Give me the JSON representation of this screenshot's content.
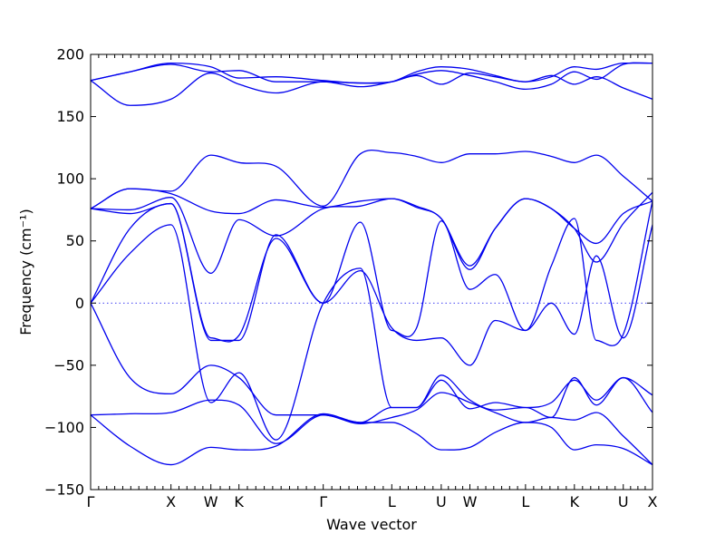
{
  "chart_data": {
    "type": "line",
    "title": "",
    "xlabel": "Wave vector",
    "ylabel": "Frequency (cm⁻¹)",
    "ylim": [
      -150,
      200
    ],
    "yticks": [
      -150,
      -100,
      -50,
      0,
      50,
      100,
      150,
      200
    ],
    "xlim": [
      0,
      1
    ],
    "xticks": [
      {
        "pos": 0.0,
        "label": "Γ"
      },
      {
        "pos": 0.143,
        "label": "X"
      },
      {
        "pos": 0.214,
        "label": "W"
      },
      {
        "pos": 0.264,
        "label": "K"
      },
      {
        "pos": 0.414,
        "label": "Γ"
      },
      {
        "pos": 0.536,
        "label": "L"
      },
      {
        "pos": 0.624,
        "label": "U"
      },
      {
        "pos": 0.675,
        "label": "W"
      },
      {
        "pos": 0.774,
        "label": "L"
      },
      {
        "pos": 0.861,
        "label": "K"
      },
      {
        "pos": 0.948,
        "label": "U"
      },
      {
        "pos": 1.0,
        "label": "X"
      }
    ],
    "zero_line": true,
    "grid": false,
    "legend": "none",
    "colors": {
      "bands": "#0000ee",
      "zero_line": "#0000ee",
      "axes": "#000000"
    },
    "series": [
      {
        "x": [
          0,
          0.07,
          0.143,
          0.214,
          0.264,
          0.33,
          0.414,
          0.48,
          0.536,
          0.58,
          0.624,
          0.675,
          0.72,
          0.774,
          0.82,
          0.861,
          0.9,
          0.948,
          1.0
        ],
        "values": [
          -90,
          -115,
          -130,
          -116,
          -118,
          -115,
          -89,
          -96,
          -96,
          -105,
          -118,
          -116,
          -104,
          -96,
          -100,
          -118,
          -114,
          -117,
          -130
        ]
      },
      {
        "x": [
          0,
          0.07,
          0.143,
          0.214,
          0.264,
          0.33,
          0.414,
          0.48,
          0.536,
          0.58,
          0.624,
          0.675,
          0.72,
          0.774,
          0.82,
          0.861,
          0.9,
          0.948,
          1.0
        ],
        "values": [
          -90,
          -89,
          -88,
          -78,
          -82,
          -113,
          -90,
          -97,
          -92,
          -86,
          -72,
          -80,
          -88,
          -96,
          -92,
          -94,
          -88,
          -107,
          -130
        ]
      },
      {
        "x": [
          0,
          0.07,
          0.143,
          0.214,
          0.264,
          0.33,
          0.414,
          0.48,
          0.536,
          0.58,
          0.624,
          0.675,
          0.72,
          0.774,
          0.82,
          0.861,
          0.9,
          0.948,
          1.0
        ],
        "values": [
          0,
          -60,
          -73,
          -50,
          -60,
          -90,
          -90,
          -96,
          -84,
          -84,
          -62,
          -85,
          -80,
          -84,
          -80,
          -62,
          -78,
          -60,
          -74
        ]
      },
      {
        "x": [
          0,
          0.07,
          0.143,
          0.214,
          0.264,
          0.33,
          0.414,
          0.48,
          0.536,
          0.58,
          0.624,
          0.675,
          0.72,
          0.774,
          0.82,
          0.861,
          0.9,
          0.948,
          1.0
        ],
        "values": [
          0,
          40,
          63,
          -80,
          -56,
          -110,
          0,
          28,
          -84,
          -84,
          -58,
          -78,
          -86,
          -84,
          -92,
          -60,
          -82,
          -60,
          -88
        ]
      },
      {
        "x": [
          0,
          0.07,
          0.143,
          0.214,
          0.264,
          0.33,
          0.414,
          0.48,
          0.536,
          0.58,
          0.624,
          0.675,
          0.72,
          0.774,
          0.82,
          0.861,
          0.9,
          0.948,
          1.0
        ],
        "values": [
          0,
          60,
          80,
          -28,
          -26,
          52,
          0,
          26,
          -20,
          -30,
          -28,
          -50,
          -14,
          -22,
          0,
          -25,
          38,
          -28,
          63
        ]
      },
      {
        "x": [
          0,
          0.07,
          0.143,
          0.214,
          0.264,
          0.33,
          0.414,
          0.48,
          0.536,
          0.58,
          0.624,
          0.675,
          0.72,
          0.774,
          0.82,
          0.861,
          0.9,
          0.948,
          1.0
        ],
        "values": [
          76,
          72,
          80,
          -30,
          -30,
          55,
          0,
          65,
          -22,
          -20,
          66,
          11,
          23,
          -22,
          30,
          68,
          -30,
          -25,
          82
        ]
      },
      {
        "x": [
          0,
          0.07,
          0.143,
          0.214,
          0.264,
          0.33,
          0.414,
          0.48,
          0.536,
          0.58,
          0.624,
          0.675,
          0.72,
          0.774,
          0.82,
          0.861,
          0.9,
          0.948,
          1.0
        ],
        "values": [
          76,
          75,
          85,
          24,
          67,
          54,
          76,
          78,
          84,
          77,
          68,
          27,
          60,
          84,
          76,
          60,
          33,
          64,
          89
        ]
      },
      {
        "x": [
          0,
          0.07,
          0.143,
          0.214,
          0.264,
          0.33,
          0.414,
          0.48,
          0.536,
          0.58,
          0.624,
          0.675,
          0.72,
          0.774,
          0.82,
          0.861,
          0.9,
          0.948,
          1.0
        ],
        "values": [
          76,
          92,
          88,
          74,
          72,
          83,
          77,
          82,
          84,
          78,
          68,
          30,
          60,
          84,
          76,
          60,
          48,
          72,
          82
        ]
      },
      {
        "x": [
          0,
          0.07,
          0.143,
          0.214,
          0.264,
          0.33,
          0.414,
          0.48,
          0.536,
          0.58,
          0.624,
          0.675,
          0.72,
          0.774,
          0.82,
          0.861,
          0.9,
          0.948,
          1.0
        ],
        "values": [
          76,
          92,
          90,
          119,
          113,
          110,
          78,
          120,
          121,
          118,
          113,
          120,
          120,
          122,
          118,
          113,
          119,
          102,
          82
        ]
      },
      {
        "x": [
          0,
          0.07,
          0.143,
          0.214,
          0.264,
          0.33,
          0.414,
          0.48,
          0.536,
          0.58,
          0.624,
          0.675,
          0.72,
          0.774,
          0.82,
          0.861,
          0.9,
          0.948,
          1.0
        ],
        "values": [
          179,
          159,
          164,
          185,
          176,
          169,
          178,
          177,
          178,
          183,
          176,
          185,
          182,
          178,
          183,
          176,
          182,
          173,
          164
        ]
      },
      {
        "x": [
          0,
          0.07,
          0.143,
          0.214,
          0.264,
          0.33,
          0.414,
          0.48,
          0.536,
          0.58,
          0.624,
          0.675,
          0.72,
          0.774,
          0.82,
          0.861,
          0.9,
          0.948,
          1.0
        ],
        "values": [
          179,
          186,
          192,
          186,
          187,
          178,
          178,
          174,
          178,
          184,
          187,
          183,
          178,
          172,
          176,
          186,
          180,
          192,
          193
        ]
      },
      {
        "x": [
          0,
          0.07,
          0.143,
          0.214,
          0.264,
          0.33,
          0.414,
          0.48,
          0.536,
          0.58,
          0.624,
          0.675,
          0.72,
          0.774,
          0.82,
          0.861,
          0.9,
          0.948,
          1.0
        ],
        "values": [
          179,
          186,
          193,
          190,
          181,
          182,
          179,
          177,
          178,
          186,
          190,
          188,
          183,
          178,
          182,
          190,
          188,
          193,
          193
        ]
      }
    ]
  }
}
